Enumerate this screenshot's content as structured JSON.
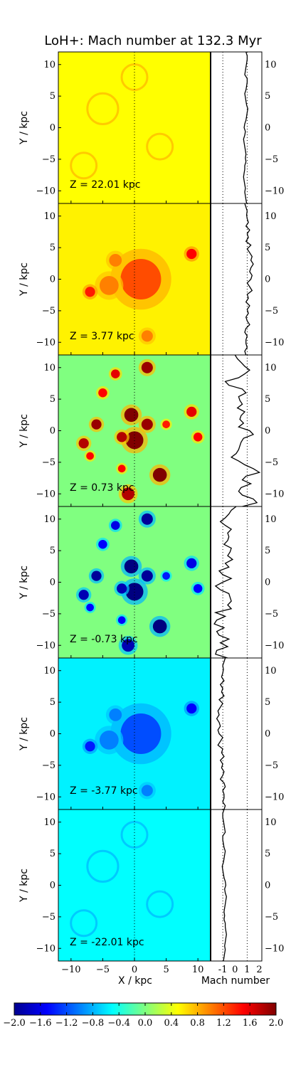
{
  "chart_data": {
    "type": "heatmap",
    "title": "LoH+: Mach number at 132.3 Myr",
    "xlabel": "X / kpc",
    "ylabel": "Y / kpc",
    "profile_xlabel": "Mach number",
    "xlim": [
      -12,
      12
    ],
    "ylim": [
      -12,
      12
    ],
    "x_ticks": [
      "−10",
      "−5",
      "0",
      "5",
      "10"
    ],
    "y_ticks": [
      "10",
      "5",
      "0",
      "−5",
      "−10"
    ],
    "profile_xlim": [
      -2,
      2.2
    ],
    "profile_ticks": [
      "-1",
      "0",
      "1",
      "2"
    ],
    "profile_ref_lines": [
      -1,
      1
    ],
    "colorbar": {
      "range": [
        -2.0,
        2.0
      ],
      "colormap": "jet",
      "tick_values": [
        -2.0,
        -1.6,
        -1.2,
        -0.8,
        -0.4,
        0.0,
        0.4,
        0.8,
        1.2,
        1.6,
        2.0
      ],
      "tick_labels": [
        "−2.0",
        "−1.6",
        "−1.2",
        "−0.8",
        "−0.4",
        "0.0",
        "0.4",
        "0.8",
        "1.2",
        "1.6",
        "2.0"
      ]
    },
    "panels": [
      {
        "z_label": "Z = 22.01 kpc",
        "z": 22.01,
        "base": 0.5,
        "blobs": [],
        "hazy": [
          [
            -5,
            3,
            1.2
          ],
          [
            4,
            -3,
            1.0
          ],
          [
            0,
            8,
            1.0
          ],
          [
            -8,
            -6,
            1.0
          ]
        ],
        "profile": [
          0.9,
          1.0,
          1.0,
          0.95,
          0.9,
          0.85,
          0.8,
          1.0,
          1.0,
          0.95,
          0.9,
          0.8,
          0.85,
          0.9,
          0.95,
          1.05,
          1.0,
          0.95,
          0.9,
          0.8,
          0.75,
          0.85,
          0.8,
          0.7,
          0.75,
          0.8,
          0.85,
          0.9,
          0.85,
          0.9,
          0.8,
          0.8,
          0.75,
          0.7,
          0.75,
          0.8,
          0.85,
          0.8,
          0.85,
          0.9,
          0.95
        ]
      },
      {
        "z_label": "Z = 3.77 kpc",
        "z": 3.77,
        "base": 0.55,
        "blobs": [
          [
            1,
            0,
            3.2,
            1.2
          ],
          [
            -4,
            -1,
            1.5,
            1.0
          ],
          [
            9,
            4,
            0.8,
            1.5
          ],
          [
            -7,
            -2,
            0.8,
            1.4
          ],
          [
            2,
            -9,
            0.9,
            1.0
          ],
          [
            -3,
            3,
            1.0,
            1.0
          ]
        ],
        "hazy": [],
        "profile": [
          0.8,
          0.9,
          1.0,
          0.95,
          1.0,
          1.1,
          0.9,
          1.2,
          1.0,
          1.1,
          0.9,
          1.3,
          1.0,
          1.2,
          1.4,
          1.3,
          1.5,
          1.3,
          1.2,
          1.4,
          1.3,
          1.0,
          1.2,
          1.4,
          1.0,
          1.1,
          0.9,
          1.2,
          1.0,
          1.1,
          0.9,
          1.0,
          1.2,
          0.9,
          0.8,
          1.0,
          0.9,
          0.9,
          1.0,
          0.8,
          0.9
        ]
      },
      {
        "z_label": "Z = 0.73 kpc",
        "z": 0.73,
        "base": 0.0,
        "blobs": [
          [
            2,
            10,
            0.9,
            1.9
          ],
          [
            -3,
            9,
            0.7,
            1.6
          ],
          [
            -5,
            6,
            0.7,
            1.5
          ],
          [
            -0.5,
            2.5,
            1.1,
            2.0
          ],
          [
            -6,
            1,
            0.8,
            1.9
          ],
          [
            0,
            -1.5,
            1.4,
            2.0
          ],
          [
            2,
            1,
            0.9,
            1.9
          ],
          [
            -2,
            -1,
            0.8,
            1.8
          ],
          [
            -8,
            -2,
            0.8,
            1.8
          ],
          [
            9,
            3,
            0.8,
            1.6
          ],
          [
            10,
            -1,
            0.7,
            1.5
          ],
          [
            -7,
            -4,
            0.6,
            1.5
          ],
          [
            -2,
            -6,
            0.6,
            1.5
          ],
          [
            4,
            -7,
            1.1,
            2.0
          ],
          [
            -1,
            -10,
            1.0,
            1.8
          ],
          [
            5,
            1,
            0.6,
            1.4
          ]
        ],
        "hazy": [],
        "profile": [
          0.0,
          0.2,
          0.5,
          0.8,
          1.2,
          0.8,
          0.3,
          -0.8,
          -0.5,
          0.6,
          0.9,
          0.3,
          0.4,
          0.6,
          0.2,
          0.8,
          0.5,
          0.4,
          0.7,
          0.3,
          1.2,
          1.5,
          0.7,
          0.5,
          0.4,
          0.3,
          0.1,
          -0.3,
          0.3,
          0.8,
          1.5,
          2.0,
          0.9,
          0.6,
          1.3,
          0.5,
          0.3,
          0.6,
          1.5,
          1.8,
          0.6
        ]
      },
      {
        "z_label": "Z = -0.73 kpc",
        "z": -0.73,
        "base": 0.0,
        "blobs": [
          [
            2,
            10,
            0.9,
            -1.9
          ],
          [
            -3,
            9,
            0.7,
            -1.6
          ],
          [
            -5,
            6,
            0.7,
            -1.5
          ],
          [
            -0.5,
            2.5,
            1.1,
            -2.0
          ],
          [
            -6,
            1,
            0.8,
            -1.9
          ],
          [
            0,
            -1.5,
            1.4,
            -2.0
          ],
          [
            2,
            1,
            0.9,
            -1.9
          ],
          [
            -2,
            -1,
            0.8,
            -1.8
          ],
          [
            -8,
            -2,
            0.8,
            -1.8
          ],
          [
            9,
            3,
            0.8,
            -1.6
          ],
          [
            10,
            -1,
            0.7,
            -1.5
          ],
          [
            -7,
            -4,
            0.6,
            -1.5
          ],
          [
            -2,
            -6,
            0.6,
            -1.5
          ],
          [
            4,
            -7,
            1.1,
            -2.0
          ],
          [
            -1,
            -10,
            1.0,
            -1.8
          ],
          [
            5,
            1,
            0.6,
            -1.4
          ]
        ],
        "hazy": [],
        "profile": [
          0.1,
          -0.3,
          -0.5,
          -0.8,
          -1.2,
          -0.8,
          -0.3,
          -0.6,
          -0.5,
          -0.6,
          -0.9,
          -0.3,
          -0.4,
          -0.6,
          -0.2,
          -0.8,
          -0.5,
          -1.3,
          -1.0,
          -0.3,
          -1.0,
          -1.6,
          -1.2,
          -0.5,
          -0.4,
          -0.3,
          -0.6,
          -0.3,
          -1.6,
          -0.8,
          -1.5,
          -1.7,
          -0.9,
          -1.5,
          -1.3,
          -0.5,
          -1.2,
          -0.6,
          -1.5,
          -1.6,
          -0.6
        ]
      },
      {
        "z_label": "Z = -3.77 kpc",
        "z": -3.77,
        "base": -0.55,
        "blobs": [
          [
            1,
            0,
            3.2,
            -1.2
          ],
          [
            -4,
            -1,
            1.5,
            -1.0
          ],
          [
            9,
            4,
            0.8,
            -1.5
          ],
          [
            -7,
            -2,
            0.8,
            -1.4
          ],
          [
            2,
            -9,
            0.9,
            -1.0
          ],
          [
            -3,
            3,
            1.0,
            -1.0
          ]
        ],
        "hazy": [],
        "profile": [
          -0.8,
          -0.9,
          -1.0,
          -0.95,
          -1.0,
          -1.1,
          -0.9,
          -1.2,
          -1.0,
          -1.1,
          -0.9,
          -1.3,
          -1.0,
          -1.2,
          -1.4,
          -1.3,
          -1.5,
          -1.3,
          -1.2,
          -1.4,
          -1.3,
          -1.0,
          -1.2,
          -1.4,
          -1.0,
          -1.1,
          -0.9,
          -1.2,
          -1.0,
          -1.1,
          -0.9,
          -1.0,
          -1.2,
          -0.9,
          -0.8,
          -1.0,
          -0.9,
          -0.9,
          -1.0,
          -0.8,
          -0.9
        ]
      },
      {
        "z_label": "Z = -22.01 kpc",
        "z": -22.01,
        "base": -0.5,
        "blobs": [],
        "hazy": [
          [
            -5,
            3,
            1.2
          ],
          [
            4,
            -3,
            1.0
          ],
          [
            0,
            8,
            1.0
          ],
          [
            -8,
            -6,
            1.0
          ]
        ],
        "profile": [
          -0.9,
          -1.0,
          -1.0,
          -0.95,
          -0.9,
          -0.85,
          -0.8,
          -1.0,
          -1.0,
          -0.95,
          -0.9,
          -0.8,
          -0.85,
          -0.9,
          -0.95,
          -1.05,
          -1.0,
          -0.95,
          -0.9,
          -0.8,
          -0.75,
          -0.85,
          -0.8,
          -0.7,
          -0.75,
          -0.8,
          -0.85,
          -0.9,
          -0.85,
          -0.9,
          -0.8,
          -0.8,
          -0.75,
          -0.7,
          -0.75,
          -0.8,
          -0.85,
          -0.8,
          -0.85,
          -0.9,
          -0.95
        ]
      }
    ]
  }
}
